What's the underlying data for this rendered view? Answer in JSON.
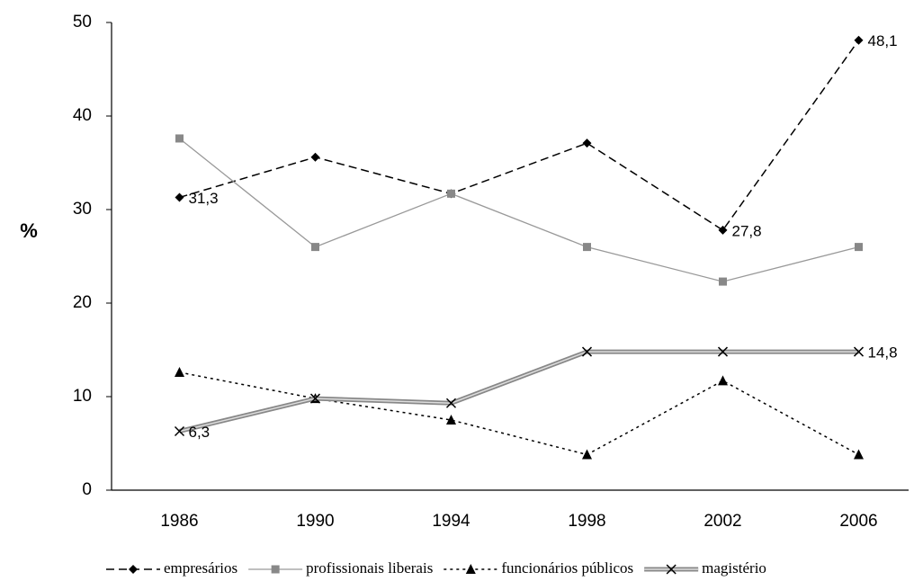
{
  "chart_data": {
    "type": "line",
    "y_label": "%",
    "categories": [
      "1986",
      "1990",
      "1994",
      "1998",
      "2002",
      "2006"
    ],
    "ylim": [
      0,
      50
    ],
    "yticks": [
      0,
      10,
      20,
      30,
      40,
      50
    ],
    "series": [
      {
        "name": "empresários",
        "color": "#000000",
        "dash": "dashed",
        "marker": "diamond",
        "values": [
          31.3,
          35.6,
          31.7,
          37.1,
          27.8,
          48.1
        ],
        "value_labels": [
          "31,3",
          null,
          null,
          null,
          "27,8",
          "48,1"
        ]
      },
      {
        "name": "profissionais liberais",
        "color": "#999999",
        "dash": "solid",
        "marker": "square",
        "values": [
          37.6,
          26.0,
          31.7,
          26.0,
          22.3,
          26.0
        ]
      },
      {
        "name": "funcionários públicos",
        "color": "#000000",
        "dash": "dotted",
        "marker": "triangle",
        "values": [
          12.6,
          9.8,
          7.5,
          3.8,
          11.7,
          3.8
        ]
      },
      {
        "name": "magistério",
        "color": "#888888",
        "dash": "double",
        "marker": "cross",
        "values": [
          6.3,
          9.8,
          9.3,
          14.8,
          14.8,
          14.8
        ],
        "value_labels": [
          "6,3",
          null,
          null,
          null,
          null,
          "14,8"
        ]
      }
    ]
  }
}
